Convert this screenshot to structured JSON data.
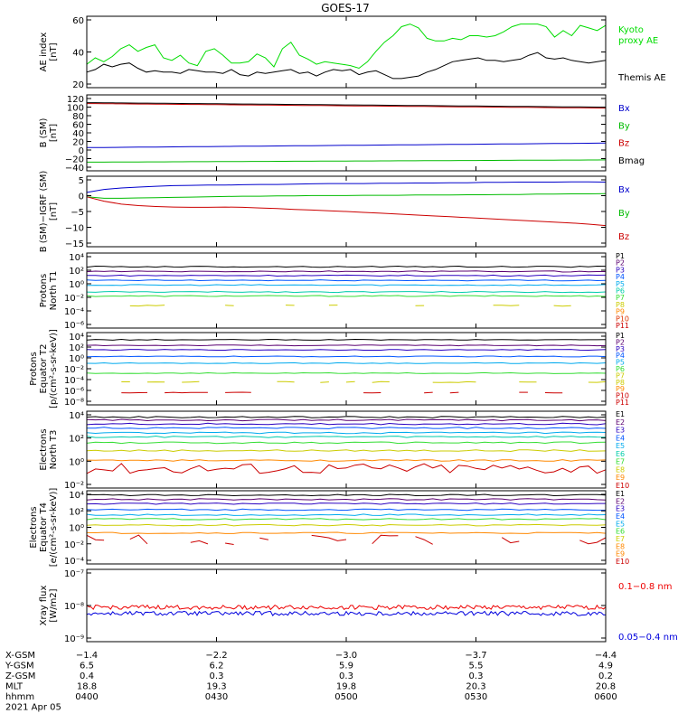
{
  "title": "GOES-17",
  "chart_data": [
    {
      "type": "line",
      "ylabel": "AE index\n[nT]",
      "yticks": [
        "60",
        "40",
        "20"
      ],
      "ylim": [
        10,
        65
      ],
      "legend": [
        "Kyoto\nproxy AE",
        "Themis AE"
      ],
      "series": [
        {
          "name": "Kyoto proxy AE",
          "color": "#00dd00",
          "values": [
            28,
            33,
            30,
            34,
            40,
            43,
            38,
            41,
            43,
            33,
            31,
            35,
            29,
            27,
            38,
            40,
            35,
            29,
            29,
            30,
            36,
            33,
            26,
            40,
            45,
            35,
            32,
            28,
            30,
            29,
            28,
            27,
            25,
            30,
            38,
            45,
            50,
            57,
            59,
            56,
            48,
            46,
            46,
            48,
            47,
            50,
            50,
            49,
            50,
            53,
            57,
            59,
            59,
            59,
            57,
            49,
            54,
            50,
            58,
            56,
            54,
            58
          ]
        },
        {
          "name": "Themis AE",
          "color": "#000000",
          "values": [
            22,
            24,
            28,
            26,
            28,
            29,
            25,
            22,
            23,
            22,
            22,
            21,
            24,
            23,
            22,
            22,
            21,
            24,
            20,
            19,
            22,
            21,
            22,
            23,
            24,
            21,
            22,
            19,
            22,
            24,
            23,
            24,
            20,
            22,
            23,
            20,
            17,
            17,
            18,
            19,
            22,
            24,
            27,
            30,
            31,
            32,
            33,
            31,
            31,
            30,
            31,
            32,
            35,
            37,
            33,
            32,
            33,
            31,
            30,
            29,
            30,
            31
          ]
        }
      ]
    },
    {
      "type": "line",
      "ylabel": "B (SM)\n[nT]",
      "yticks": [
        "120",
        "100",
        "80",
        "60",
        "40",
        "20",
        "0",
        "−20",
        "−40"
      ],
      "ylim": [
        -45,
        122
      ],
      "legend": [
        "Bx",
        "By",
        "Bz",
        "Bmag"
      ],
      "series": [
        {
          "name": "Bx",
          "color": "#0000cc",
          "start": 6,
          "end": 16
        },
        {
          "name": "By",
          "color": "#00bb00",
          "start": -26,
          "end": -21
        },
        {
          "name": "Bz",
          "color": "#cc0000",
          "start": 103,
          "end": 93
        },
        {
          "name": "Bmag",
          "color": "#000000",
          "start": 105,
          "end": 95
        }
      ]
    },
    {
      "type": "line",
      "ylabel": "B (SM)−IGRF (SM)\n[nT]",
      "yticks": [
        "5",
        "0",
        "−5",
        "−10",
        "−15"
      ],
      "ylim": [
        -17,
        7
      ],
      "legend": [
        "Bx",
        "By",
        "Bz"
      ],
      "series": [
        {
          "name": "Bx",
          "color": "#0000cc",
          "values": [
            1.5,
            2.5,
            3.0,
            3.3,
            3.6,
            3.8,
            3.9,
            4.0,
            4.0,
            4.1,
            4.2,
            4.2,
            4.3,
            4.4,
            4.5,
            4.5,
            4.5,
            4.6,
            4.6,
            4.7,
            4.7,
            4.8,
            4.8,
            4.9,
            4.9,
            5.0,
            5.0,
            5.0,
            5.1,
            5.1,
            5.0
          ]
        },
        {
          "name": "By",
          "color": "#00bb00",
          "values": [
            0.0,
            -0.5,
            -0.5,
            -0.4,
            -0.3,
            -0.2,
            -0.1,
            0.0,
            0.1,
            0.2,
            0.2,
            0.3,
            0.3,
            0.4,
            0.4,
            0.4,
            0.5,
            0.5,
            0.5,
            0.6,
            0.6,
            0.6,
            0.7,
            0.7,
            0.8,
            0.8,
            0.9,
            0.9,
            1.0,
            1.0,
            1.1
          ]
        },
        {
          "name": "Bz",
          "color": "#cc0000",
          "values": [
            0.0,
            -1.5,
            -2.5,
            -3.0,
            -3.3,
            -3.5,
            -3.6,
            -3.6,
            -3.5,
            -3.6,
            -3.8,
            -4.0,
            -4.3,
            -4.5,
            -4.8,
            -5.0,
            -5.3,
            -5.6,
            -5.9,
            -6.2,
            -6.5,
            -6.8,
            -7.1,
            -7.4,
            -7.7,
            -8.0,
            -8.3,
            -8.6,
            -8.9,
            -9.3,
            -9.8
          ]
        }
      ]
    },
    {
      "type": "line",
      "log": true,
      "ylabel": "Protons\nNorth T1",
      "yticks": [
        "10⁴",
        "10²",
        "10⁰",
        "10⁻²",
        "10⁻⁴",
        "10⁻⁶"
      ],
      "ylim": [
        -6.5,
        4.5
      ],
      "legend": [
        "P1",
        "P2",
        "P3",
        "P4",
        "P5",
        "P6",
        "P7",
        "P8",
        "P9",
        "P10",
        "P11"
      ],
      "series": [
        {
          "name": "P1",
          "color": "#000000",
          "level": 2.5
        },
        {
          "name": "P2",
          "color": "#5a0070",
          "level": 1.8
        },
        {
          "name": "P3",
          "color": "#2a00c0",
          "level": 1.2
        },
        {
          "name": "P4",
          "color": "#0055ff",
          "level": 0.5
        },
        {
          "name": "P5",
          "color": "#00aaee",
          "level": -0.2
        },
        {
          "name": "P6",
          "color": "#00ccaa",
          "level": -1.2
        },
        {
          "name": "P7",
          "color": "#33dd33",
          "level": -1.8
        },
        {
          "name": "P8",
          "color": "#cccc00",
          "level": -3.2,
          "gapped": true
        }
      ]
    },
    {
      "type": "line",
      "log": true,
      "ylabel": "Protons\nEquator T2\n[p/(cm²-s-sr-keV)]",
      "yticks": [
        "10⁴",
        "10²",
        "10⁰",
        "10⁻²",
        "10⁻⁴",
        "10⁻⁶",
        "10⁻⁸"
      ],
      "ylim": [
        -8.5,
        4.5
      ],
      "legend": [
        "P1",
        "P2",
        "P3",
        "P4",
        "P5",
        "P6",
        "P7",
        "P8",
        "P9",
        "P10",
        "P11"
      ],
      "series": [
        {
          "name": "P1",
          "color": "#000000",
          "level": 3.2
        },
        {
          "name": "P2",
          "color": "#5a0070",
          "level": 2.2
        },
        {
          "name": "P3",
          "color": "#2a00c0",
          "level": 1.4
        },
        {
          "name": "P4",
          "color": "#0055ff",
          "level": 0.2
        },
        {
          "name": "P5",
          "color": "#00aaee",
          "level": -1.0
        },
        {
          "name": "P6",
          "color": "#33dd33",
          "level": -2.8
        },
        {
          "name": "P7",
          "color": "#cccc00",
          "level": -4.4,
          "gapped": true
        },
        {
          "name": "P10",
          "color": "#cc0000",
          "level": -6.3,
          "gapped": true
        }
      ]
    },
    {
      "type": "line",
      "log": true,
      "ylabel": "Electrons\nNorth T3",
      "yticks": [
        "10⁴",
        "10²",
        "10⁰",
        "10⁻²"
      ],
      "ylim": [
        -3.6,
        4.2
      ],
      "legend": [
        "E1",
        "E2",
        "E3",
        "E4",
        "E5",
        "E6",
        "E7",
        "E8",
        "E9",
        "E10"
      ],
      "series": [
        {
          "name": "E1",
          "color": "#000000",
          "level": 3.6
        },
        {
          "name": "E2",
          "color": "#5a0070",
          "level": 3.3
        },
        {
          "name": "E3",
          "color": "#2a00c0",
          "level": 2.9
        },
        {
          "name": "E4",
          "color": "#0055ff",
          "level": 2.5
        },
        {
          "name": "E5",
          "color": "#00aaee",
          "level": 2.0
        },
        {
          "name": "E6",
          "color": "#00ccaa",
          "level": 1.6
        },
        {
          "name": "E7",
          "color": "#33dd33",
          "level": 1.0
        },
        {
          "name": "E8",
          "color": "#cccc00",
          "level": 0.2
        },
        {
          "name": "E9",
          "color": "#ff8800",
          "level": -0.8
        },
        {
          "name": "E10",
          "color": "#cc0000",
          "level": -1.6,
          "noisy": true
        }
      ]
    },
    {
      "type": "line",
      "log": true,
      "ylabel": "Electrons\nEquator T4\n[e/(cm²-s-sr-keV)]",
      "yticks": [
        "10⁴",
        "10²",
        "10⁰",
        "10⁻²",
        "10⁻⁴"
      ],
      "ylim": [
        -4.3,
        4.2
      ],
      "legend": [
        "E1",
        "E2",
        "E3",
        "E4",
        "E5",
        "E6",
        "E7",
        "E8",
        "E9",
        "E10"
      ],
      "series": [
        {
          "name": "E1",
          "color": "#000000",
          "level": 3.7
        },
        {
          "name": "E2",
          "color": "#5a0070",
          "level": 3.2
        },
        {
          "name": "E3",
          "color": "#2a00c0",
          "level": 2.7
        },
        {
          "name": "E4",
          "color": "#0055ff",
          "level": 2.0
        },
        {
          "name": "E5",
          "color": "#00aaee",
          "level": 1.4
        },
        {
          "name": "E6",
          "color": "#33dd33",
          "level": 0.9
        },
        {
          "name": "E7",
          "color": "#cccc00",
          "level": 0.2
        },
        {
          "name": "E8",
          "color": "#ff8800",
          "level": -0.7
        },
        {
          "name": "E10",
          "color": "#cc0000",
          "level": -1.5,
          "noisy": true,
          "gapped": true
        }
      ]
    },
    {
      "type": "line",
      "log": true,
      "ylabel": "Xray flux\n[W/m2]",
      "yticks": [
        "10⁻⁷",
        "10⁻⁸",
        "10⁻⁹"
      ],
      "ylim": [
        -9,
        -7
      ],
      "legend": [
        "0.1−0.8 nm",
        "0.05−0.4 nm"
      ],
      "series": [
        {
          "name": "0.1−0.8 nm",
          "color": "#ee0000",
          "level": -8.05
        },
        {
          "name": "0.05−0.4 nm",
          "color": "#0000dd",
          "level": -8.22
        }
      ]
    }
  ],
  "xaxis": {
    "row_labels": [
      "X-GSM",
      "Y-GSM",
      "Z-GSM",
      "MLT",
      "hhmm",
      "2021 Apr 05"
    ],
    "columns": [
      [
        "−1.4",
        "6.5",
        "0.4",
        "18.8",
        "0400"
      ],
      [
        "−2.2",
        "6.2",
        "0.3",
        "19.3",
        "0430"
      ],
      [
        "−3.0",
        "5.9",
        "0.3",
        "19.8",
        "0500"
      ],
      [
        "−3.7",
        "5.5",
        "0.3",
        "20.3",
        "0530"
      ],
      [
        "−4.4",
        "4.9",
        "0.2",
        "20.8",
        "0600"
      ]
    ]
  }
}
